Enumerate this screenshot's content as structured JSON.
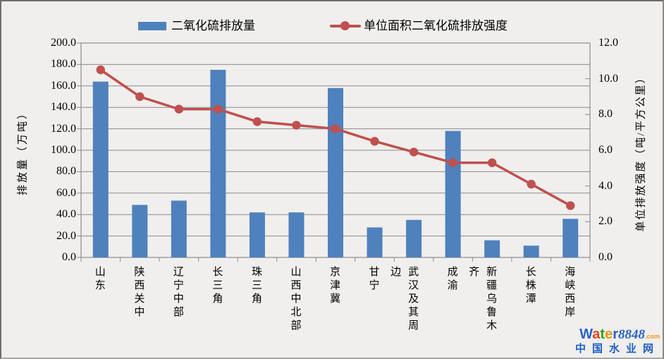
{
  "chart_data": {
    "type": "bar",
    "subtype": "bar+line-combo",
    "categories": [
      "山东",
      "陕西关中",
      "辽宁中部",
      "长三角",
      "珠三角",
      "山西中北部",
      "京津冀",
      "甘宁",
      "武汉及其周边",
      "成渝",
      "新疆乌鲁木齐",
      "长株潭",
      "海峡西岸"
    ],
    "series": [
      {
        "name": "二氧化硫排放量",
        "type": "bar",
        "axis": "left",
        "color": "#4f81bd",
        "values": [
          164,
          49,
          53,
          175,
          42,
          42,
          158,
          28,
          35,
          118,
          16,
          11,
          36
        ]
      },
      {
        "name": "单位面积二氧化硫排放强度",
        "type": "line",
        "axis": "right",
        "color": "#c0504d",
        "values": [
          10.5,
          9.0,
          8.3,
          8.3,
          7.6,
          7.4,
          7.2,
          6.5,
          5.9,
          5.3,
          5.3,
          4.1,
          2.9
        ]
      }
    ],
    "left_axis": {
      "title": "排放量（万吨）",
      "min": 0,
      "max": 200,
      "step": 20,
      "tick_labels": [
        "0.0",
        "20.0",
        "40.0",
        "60.0",
        "80.0",
        "100.0",
        "120.0",
        "140.0",
        "160.0",
        "180.0",
        "200.0"
      ]
    },
    "right_axis": {
      "title": "单位排放强度（吨/平方公里）",
      "min": 0,
      "max": 12,
      "step": 2,
      "tick_labels": [
        "0.0",
        "2.0",
        "4.0",
        "6.0",
        "8.0",
        "10.0",
        "12.0"
      ]
    },
    "grid": true,
    "legend_position": "top",
    "gridline_color": "#8c8c8c",
    "plot_border_color": "#8c8c8c"
  },
  "legend": {
    "bar_label": "二氧化硫排放量",
    "line_label": "单位面积二氧化硫排放强度"
  },
  "watermark": {
    "brand_letters": [
      {
        "t": "W",
        "c": "#2a62c9"
      },
      {
        "t": "a",
        "c": "#e8471d"
      },
      {
        "t": "t",
        "c": "#2ca315"
      },
      {
        "t": "e",
        "c": "#f59414"
      },
      {
        "t": "r",
        "c": "#2a62c9"
      }
    ],
    "number": "8848",
    "number_color": "#2a62c9",
    "tld": ".com",
    "tld_color": "#f59414",
    "line2": "中国水业网",
    "line2_color": "#1f5fc4"
  }
}
